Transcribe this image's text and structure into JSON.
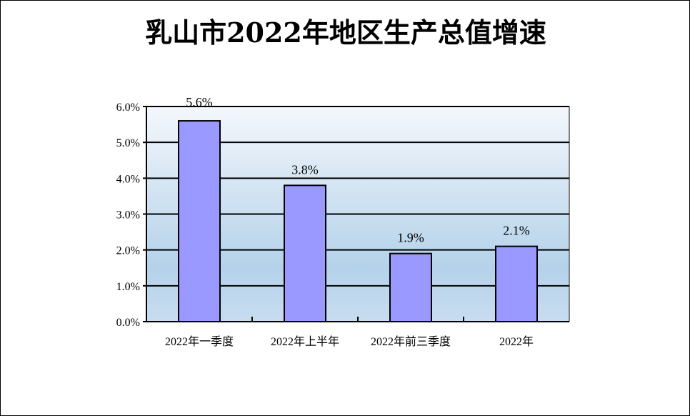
{
  "chart_data": {
    "type": "bar",
    "title": "乳山市2022年地区生产总值增速",
    "categories": [
      "2022年一季度",
      "2022年上半年",
      "2022年前三季度",
      "2022年"
    ],
    "values": [
      5.6,
      3.8,
      1.9,
      2.1
    ],
    "data_labels": [
      "5.6%",
      "3.8%",
      "1.9%",
      "2.1%"
    ],
    "ylim": [
      0,
      6
    ],
    "y_ticks": [
      "0.0%",
      "1.0%",
      "2.0%",
      "3.0%",
      "4.0%",
      "5.0%",
      "6.0%"
    ],
    "grid": true,
    "legend": "none",
    "colors": {
      "bar": "#9999FF",
      "bar_border": "#000000",
      "plot_bg_top": "#F4F7FC",
      "plot_bg_mid": "#B4D2EA",
      "plot_bg_bottom": "#C8DCF0"
    }
  }
}
